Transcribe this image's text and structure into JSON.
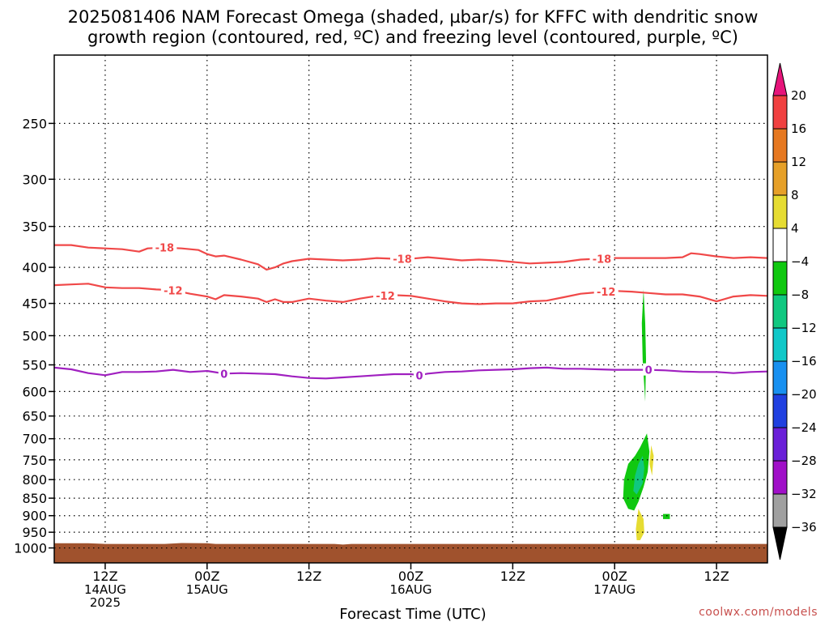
{
  "chart_data": {
    "type": "time-height",
    "title_lines": [
      "2025081406 NAM Forecast Omega (shaded, µbar/s) for KFFC with dendritic snow",
      "growth region (contoured, red, ºC) and freezing level (contoured, purple, ºC)"
    ],
    "xlabel": "Forecast Time (UTC)",
    "credit": "coolwx.com/models",
    "x_axis": {
      "unit": "hours since 2025081406",
      "range": [
        0,
        84
      ],
      "ticks": [
        {
          "hour": 6,
          "labels": [
            "12Z",
            "14AUG",
            "2025"
          ]
        },
        {
          "hour": 18,
          "labels": [
            "00Z",
            "15AUG"
          ]
        },
        {
          "hour": 30,
          "labels": [
            "12Z"
          ]
        },
        {
          "hour": 42,
          "labels": [
            "00Z",
            "16AUG"
          ]
        },
        {
          "hour": 54,
          "labels": [
            "12Z"
          ]
        },
        {
          "hour": 66,
          "labels": [
            "00Z",
            "17AUG"
          ]
        },
        {
          "hour": 78,
          "labels": [
            "12Z"
          ]
        }
      ]
    },
    "y_axis": {
      "unit": "hPa",
      "scale": "log",
      "range": [
        1050,
        200
      ],
      "ticks": [
        250,
        300,
        350,
        400,
        450,
        500,
        550,
        600,
        650,
        700,
        750,
        800,
        850,
        900,
        950,
        1000
      ],
      "grid": "dotted"
    },
    "colorbar": {
      "unit": "µbar/s",
      "levels": [
        -36,
        -32,
        -28,
        -24,
        -20,
        -16,
        -12,
        -8,
        -4,
        4,
        8,
        12,
        16,
        20
      ],
      "colors": [
        "#000000",
        "#a0a0a0",
        "#a00fc8",
        "#6a1fd8",
        "#2040e0",
        "#1890f0",
        "#10c8c8",
        "#10c880",
        "#10c810",
        "#ffffff",
        "#e6dc32",
        "#e6a028",
        "#e67820",
        "#f04040",
        "#e6147a"
      ]
    },
    "contours": [
      {
        "value": -18,
        "label": "-18",
        "color": "#f04848",
        "label_hours": [
          13,
          41,
          64.5
        ],
        "points": [
          [
            0,
            372
          ],
          [
            2,
            372
          ],
          [
            4,
            375
          ],
          [
            6,
            376
          ],
          [
            8,
            377
          ],
          [
            10,
            380
          ],
          [
            11,
            376
          ],
          [
            13,
            375
          ],
          [
            15,
            376
          ],
          [
            17,
            378
          ],
          [
            18,
            383
          ],
          [
            19,
            386
          ],
          [
            20,
            385
          ],
          [
            22,
            390
          ],
          [
            24,
            396
          ],
          [
            25,
            403
          ],
          [
            26,
            400
          ],
          [
            27,
            395
          ],
          [
            28,
            392
          ],
          [
            30,
            389
          ],
          [
            32,
            390
          ],
          [
            34,
            391
          ],
          [
            36,
            390
          ],
          [
            38,
            388
          ],
          [
            40,
            389
          ],
          [
            42,
            389
          ],
          [
            44,
            387
          ],
          [
            46,
            389
          ],
          [
            48,
            391
          ],
          [
            50,
            390
          ],
          [
            52,
            391
          ],
          [
            54,
            393
          ],
          [
            56,
            395
          ],
          [
            58,
            394
          ],
          [
            60,
            393
          ],
          [
            62,
            390
          ],
          [
            64,
            389
          ],
          [
            66,
            388
          ],
          [
            68,
            388
          ],
          [
            70,
            388
          ],
          [
            72,
            388
          ],
          [
            74,
            387
          ],
          [
            75,
            382
          ],
          [
            76,
            383
          ],
          [
            78,
            386
          ],
          [
            80,
            388
          ],
          [
            82,
            387
          ],
          [
            84,
            388
          ]
        ]
      },
      {
        "value": -12,
        "label": "-12",
        "color": "#f04848",
        "label_hours": [
          14,
          39,
          65
        ],
        "points": [
          [
            0,
            424
          ],
          [
            2,
            423
          ],
          [
            4,
            422
          ],
          [
            6,
            427
          ],
          [
            8,
            428
          ],
          [
            10,
            428
          ],
          [
            12,
            430
          ],
          [
            14,
            431
          ],
          [
            16,
            436
          ],
          [
            18,
            440
          ],
          [
            19,
            444
          ],
          [
            20,
            438
          ],
          [
            22,
            440
          ],
          [
            24,
            443
          ],
          [
            25,
            448
          ],
          [
            26,
            444
          ],
          [
            27,
            448
          ],
          [
            28,
            448
          ],
          [
            30,
            443
          ],
          [
            32,
            446
          ],
          [
            34,
            448
          ],
          [
            36,
            443
          ],
          [
            38,
            439
          ],
          [
            40,
            438
          ],
          [
            42,
            439
          ],
          [
            44,
            443
          ],
          [
            46,
            447
          ],
          [
            48,
            450
          ],
          [
            50,
            451
          ],
          [
            52,
            450
          ],
          [
            54,
            450
          ],
          [
            56,
            447
          ],
          [
            58,
            446
          ],
          [
            60,
            441
          ],
          [
            62,
            436
          ],
          [
            64,
            434
          ],
          [
            66,
            432
          ],
          [
            68,
            433
          ],
          [
            70,
            435
          ],
          [
            72,
            437
          ],
          [
            74,
            437
          ],
          [
            76,
            440
          ],
          [
            78,
            447
          ],
          [
            80,
            440
          ],
          [
            82,
            438
          ],
          [
            84,
            439
          ]
        ]
      },
      {
        "value": 0,
        "label": "0",
        "color": "#a020c0",
        "label_hours": [
          20,
          43,
          70
        ],
        "points": [
          [
            0,
            555
          ],
          [
            2,
            558
          ],
          [
            4,
            565
          ],
          [
            6,
            569
          ],
          [
            8,
            563
          ],
          [
            10,
            563
          ],
          [
            12,
            562
          ],
          [
            14,
            559
          ],
          [
            16,
            563
          ],
          [
            18,
            561
          ],
          [
            20,
            566
          ],
          [
            22,
            565
          ],
          [
            24,
            566
          ],
          [
            26,
            567
          ],
          [
            28,
            571
          ],
          [
            30,
            574
          ],
          [
            32,
            575
          ],
          [
            34,
            573
          ],
          [
            36,
            571
          ],
          [
            38,
            569
          ],
          [
            40,
            567
          ],
          [
            42,
            567
          ],
          [
            43,
            569
          ],
          [
            44,
            566
          ],
          [
            46,
            563
          ],
          [
            48,
            562
          ],
          [
            50,
            560
          ],
          [
            52,
            559
          ],
          [
            54,
            558
          ],
          [
            56,
            556
          ],
          [
            58,
            555
          ],
          [
            60,
            557
          ],
          [
            62,
            557
          ],
          [
            64,
            558
          ],
          [
            66,
            559
          ],
          [
            68,
            559
          ],
          [
            70,
            559
          ],
          [
            72,
            560
          ],
          [
            74,
            562
          ],
          [
            76,
            563
          ],
          [
            78,
            563
          ],
          [
            80,
            565
          ],
          [
            82,
            563
          ],
          [
            84,
            562
          ]
        ]
      }
    ],
    "shaded_regions": [
      {
        "value_range": [
          -8,
          -4
        ],
        "color": "#10c810",
        "points": [
          [
            69.4,
            430
          ],
          [
            69.6,
            480
          ],
          [
            69.7,
            540
          ],
          [
            69.6,
            620
          ],
          [
            69.3,
            540
          ],
          [
            69.2,
            480
          ]
        ]
      },
      {
        "value_range": [
          -8,
          -4
        ],
        "color": "#10c810",
        "points": [
          [
            69.8,
            688
          ],
          [
            70.1,
            730
          ],
          [
            69.9,
            780
          ],
          [
            69.4,
            820
          ],
          [
            68.8,
            860
          ],
          [
            68.3,
            885
          ],
          [
            67.6,
            880
          ],
          [
            67.0,
            850
          ],
          [
            67.1,
            800
          ],
          [
            67.6,
            760
          ],
          [
            68.4,
            740
          ],
          [
            69.0,
            720
          ]
        ]
      },
      {
        "value_range": [
          -12,
          -8
        ],
        "color": "#10c880",
        "points": [
          [
            69.3,
            740
          ],
          [
            69.5,
            770
          ],
          [
            69.3,
            810
          ],
          [
            68.6,
            840
          ],
          [
            68.2,
            830
          ],
          [
            68.4,
            790
          ],
          [
            68.8,
            760
          ]
        ]
      },
      {
        "value_range": [
          -8,
          -4
        ],
        "color": "#10c810",
        "points": [
          [
            71.7,
            895
          ],
          [
            72.5,
            895
          ],
          [
            72.5,
            910
          ],
          [
            71.7,
            910
          ]
        ]
      },
      {
        "value_range": [
          4,
          8
        ],
        "color": "#e6dc32",
        "points": [
          [
            70.3,
            715
          ],
          [
            70.6,
            740
          ],
          [
            70.4,
            790
          ],
          [
            70.1,
            760
          ]
        ]
      },
      {
        "value_range": [
          4,
          8
        ],
        "color": "#e6dc32",
        "points": [
          [
            68.8,
            880
          ],
          [
            69.4,
            910
          ],
          [
            69.5,
            950
          ],
          [
            69.0,
            975
          ],
          [
            68.6,
            975
          ],
          [
            68.5,
            940
          ]
        ]
      }
    ],
    "ground": {
      "color": "#a0522d",
      "surface_pressure_hPa": [
        [
          0,
          985
        ],
        [
          4,
          985
        ],
        [
          6,
          987
        ],
        [
          13,
          987
        ],
        [
          15,
          984
        ],
        [
          18,
          985
        ],
        [
          19,
          987
        ],
        [
          33,
          987
        ],
        [
          34,
          989
        ],
        [
          35,
          987
        ],
        [
          84,
          987
        ]
      ]
    }
  }
}
